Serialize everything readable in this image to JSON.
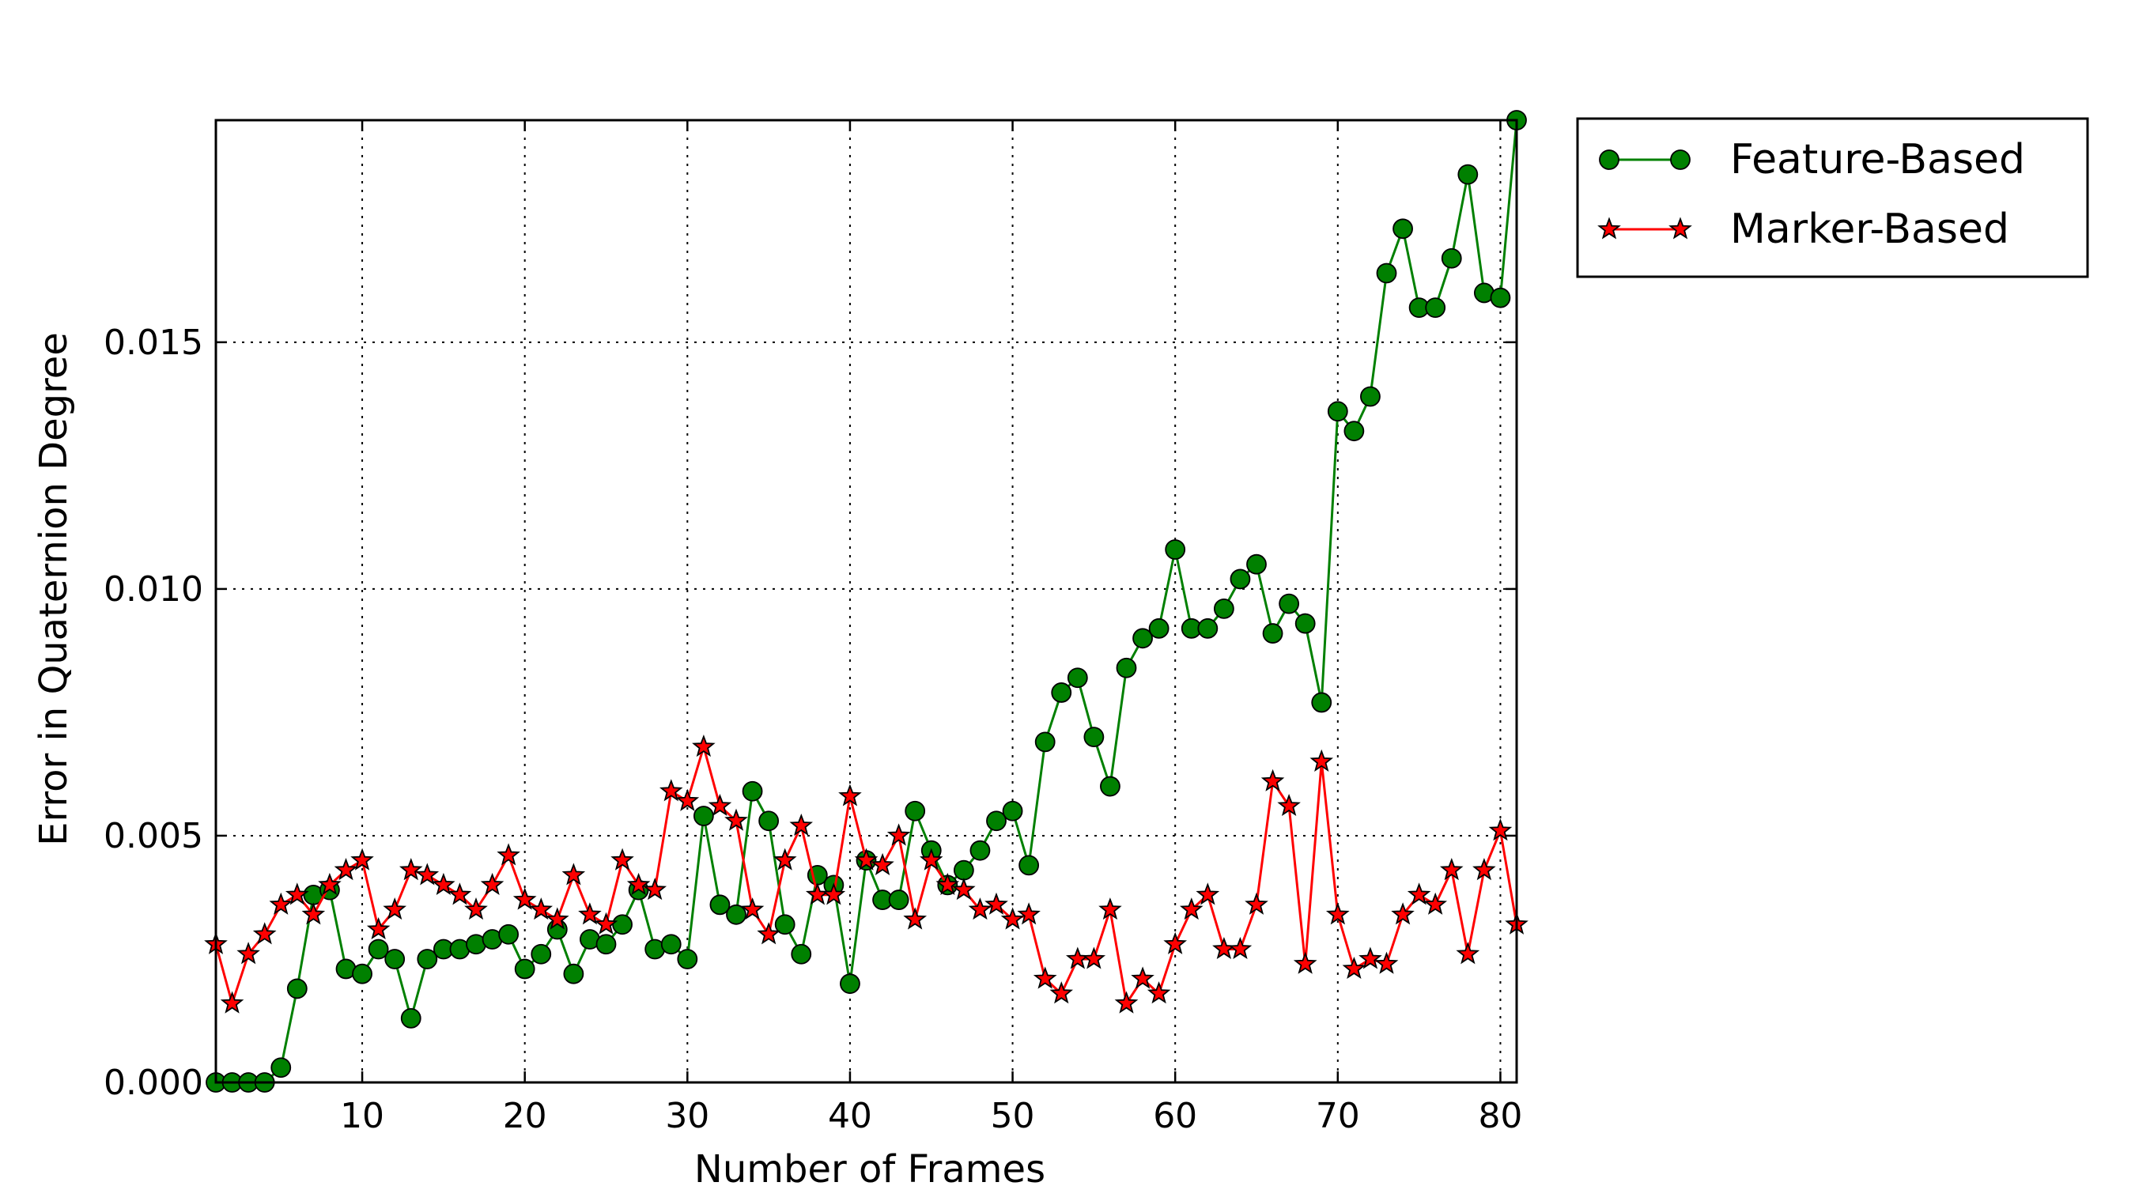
{
  "chart_data": {
    "type": "line",
    "xlabel": "Number of Frames",
    "ylabel": "Error in Quaternion Degree",
    "xlim": [
      1,
      81
    ],
    "ylim": [
      0.0,
      0.0195
    ],
    "xticks": [
      10,
      20,
      30,
      40,
      50,
      60,
      70,
      80
    ],
    "xtick_labels": [
      "10",
      "20",
      "30",
      "40",
      "50",
      "60",
      "70",
      "80"
    ],
    "yticks": [
      0.0,
      0.005,
      0.01,
      0.015
    ],
    "ytick_labels": [
      "0.000",
      "0.005",
      "0.010",
      "0.015"
    ],
    "grid": true,
    "legend_position": "outside-top-right",
    "x": [
      1,
      2,
      3,
      4,
      5,
      6,
      7,
      8,
      9,
      10,
      11,
      12,
      13,
      14,
      15,
      16,
      17,
      18,
      19,
      20,
      21,
      22,
      23,
      24,
      25,
      26,
      27,
      28,
      29,
      30,
      31,
      32,
      33,
      34,
      35,
      36,
      37,
      38,
      39,
      40,
      41,
      42,
      43,
      44,
      45,
      46,
      47,
      48,
      49,
      50,
      51,
      52,
      53,
      54,
      55,
      56,
      57,
      58,
      59,
      60,
      61,
      62,
      63,
      64,
      65,
      66,
      67,
      68,
      69,
      70,
      71,
      72,
      73,
      74,
      75,
      76,
      77,
      78,
      79,
      80,
      81
    ],
    "series": [
      {
        "name": "Feature-Based",
        "color": "#008000",
        "marker": "circle",
        "values": [
          0.0,
          0.0,
          0.0,
          0.0,
          0.0003,
          0.0019,
          0.0038,
          0.0039,
          0.0023,
          0.0022,
          0.0027,
          0.0025,
          0.0013,
          0.0025,
          0.0027,
          0.0027,
          0.0028,
          0.0029,
          0.003,
          0.0023,
          0.0026,
          0.0031,
          0.0022,
          0.0029,
          0.0028,
          0.0032,
          0.0039,
          0.0027,
          0.0028,
          0.0025,
          0.0054,
          0.0036,
          0.0034,
          0.0059,
          0.0053,
          0.0032,
          0.0026,
          0.0042,
          0.004,
          0.002,
          0.0045,
          0.0037,
          0.0037,
          0.0055,
          0.0047,
          0.004,
          0.0043,
          0.0047,
          0.0053,
          0.0055,
          0.0044,
          0.0069,
          0.0079,
          0.0082,
          0.007,
          0.006,
          0.0084,
          0.009,
          0.0092,
          0.0108,
          0.0092,
          0.0092,
          0.0096,
          0.0102,
          0.0105,
          0.0091,
          0.0097,
          0.0093,
          0.0077,
          0.0136,
          0.0132,
          0.0139,
          0.0164,
          0.0173,
          0.0157,
          0.0157,
          0.0167,
          0.0184,
          0.016,
          0.0159,
          0.0195
        ]
      },
      {
        "name": "Marker-Based",
        "color": "#ff0000",
        "marker": "star",
        "values": [
          0.0028,
          0.0016,
          0.0026,
          0.003,
          0.0036,
          0.0038,
          0.0034,
          0.004,
          0.0043,
          0.0045,
          0.0031,
          0.0035,
          0.0043,
          0.0042,
          0.004,
          0.0038,
          0.0035,
          0.004,
          0.0046,
          0.0037,
          0.0035,
          0.0033,
          0.0042,
          0.0034,
          0.0032,
          0.0045,
          0.004,
          0.0039,
          0.0059,
          0.0057,
          0.0068,
          0.0056,
          0.0053,
          0.0035,
          0.003,
          0.0045,
          0.0052,
          0.0038,
          0.0038,
          0.0058,
          0.0045,
          0.0044,
          0.005,
          0.0033,
          0.0045,
          0.004,
          0.0039,
          0.0035,
          0.0036,
          0.0033,
          0.0034,
          0.0021,
          0.0018,
          0.0025,
          0.0025,
          0.0035,
          0.0016,
          0.0021,
          0.0018,
          0.0028,
          0.0035,
          0.0038,
          0.0027,
          0.0027,
          0.0036,
          0.0061,
          0.0056,
          0.0024,
          0.0065,
          0.0034,
          0.0023,
          0.0025,
          0.0024,
          0.0034,
          0.0038,
          0.0036,
          0.0043,
          0.0026,
          0.0043,
          0.0051,
          0.0032
        ]
      }
    ]
  }
}
